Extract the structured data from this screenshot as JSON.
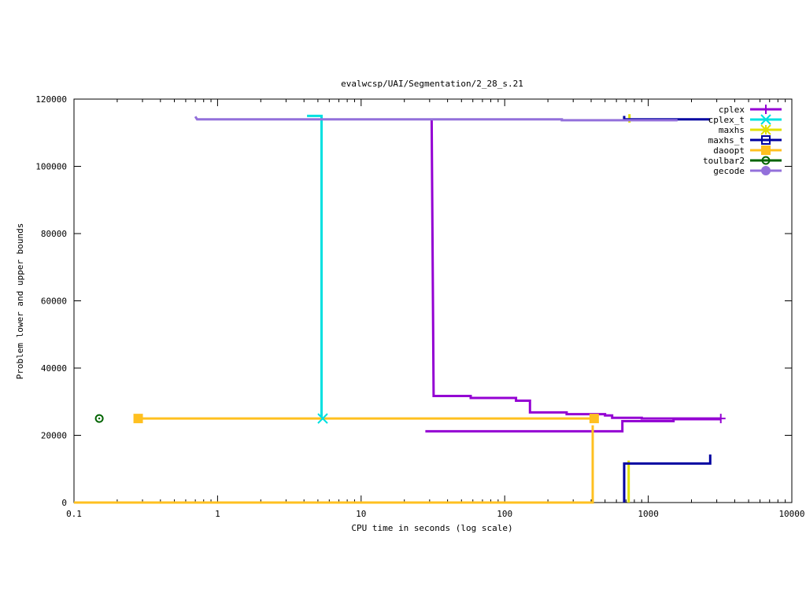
{
  "chart_data": {
    "type": "line",
    "title": "evalwcsp/UAI/Segmentation/2_28_s.21",
    "xlabel": "CPU time in seconds (log scale)",
    "ylabel": "Problem lower and upper bounds",
    "xscale": "log",
    "xlim": [
      0.1,
      10000
    ],
    "ylim": [
      0,
      120000
    ],
    "x_ticks": [
      0.1,
      1,
      10,
      100,
      1000,
      10000
    ],
    "x_tick_labels": [
      "0.1",
      "1",
      "10",
      "100",
      "1000",
      "10000"
    ],
    "y_ticks": [
      0,
      20000,
      40000,
      60000,
      80000,
      100000,
      120000
    ],
    "y_tick_labels": [
      "0",
      "20000",
      "40000",
      "60000",
      "80000",
      "100000",
      "120000"
    ],
    "legend_position": "top-right",
    "series": [
      {
        "name": "cplex",
        "color": "#9400d3",
        "marker": "plus",
        "upper": [
          [
            31,
            114200
          ],
          [
            32,
            31700
          ],
          [
            58,
            31700
          ],
          [
            58,
            31100
          ],
          [
            120,
            31100
          ],
          [
            120,
            30300
          ],
          [
            150,
            30300
          ],
          [
            150,
            26800
          ],
          [
            270,
            26800
          ],
          [
            270,
            26300
          ],
          [
            500,
            26300
          ],
          [
            500,
            25900
          ],
          [
            560,
            25900
          ],
          [
            560,
            25200
          ],
          [
            900,
            25200
          ],
          [
            900,
            25000
          ],
          [
            3200,
            25000
          ]
        ],
        "lower": [
          [
            28,
            21200
          ],
          [
            660,
            21200
          ],
          [
            660,
            24200
          ],
          [
            1500,
            24200
          ],
          [
            1500,
            24800
          ],
          [
            3200,
            24800
          ]
        ],
        "marker_at": [
          3200,
          25000
        ]
      },
      {
        "name": "cplex_t",
        "color": "#00e0e0",
        "marker": "x",
        "upper": [
          [
            4.2,
            115000
          ],
          [
            5.3,
            115000
          ],
          [
            5.3,
            25000
          ]
        ],
        "marker_at": [
          5.4,
          25000
        ]
      },
      {
        "name": "maxhs",
        "color": "#e0e000",
        "marker": "star",
        "upper": [
          [
            740,
            115500
          ],
          [
            740,
            113000
          ]
        ],
        "lower": [
          [
            730,
            0
          ],
          [
            730,
            12500
          ]
        ]
      },
      {
        "name": "maxhs_t",
        "color": "#0000a0",
        "marker": "square-open",
        "upper": [
          [
            680,
            115000
          ],
          [
            680,
            114000
          ],
          [
            2700,
            114000
          ]
        ],
        "lower": [
          [
            680,
            0
          ],
          [
            680,
            11600
          ],
          [
            2700,
            11600
          ],
          [
            2700,
            14300
          ]
        ]
      },
      {
        "name": "daoopt",
        "color": "#ffc020",
        "marker": "square",
        "upper": [
          [
            0.28,
            25000
          ],
          [
            420,
            25000
          ]
        ],
        "lower": [
          [
            0.1,
            0
          ],
          [
            410,
            0
          ],
          [
            410,
            23000
          ]
        ],
        "marker_at": [
          [
            0.28,
            25000
          ],
          [
            420,
            25000
          ]
        ]
      },
      {
        "name": "toulbar2",
        "color": "#006400",
        "marker": "circle-open",
        "marker_at": [
          0.15,
          25000
        ]
      },
      {
        "name": "gecode",
        "color": "#9370db",
        "marker": "circle",
        "upper": [
          [
            0.7,
            114800
          ],
          [
            0.72,
            114000
          ],
          [
            250,
            114000
          ],
          [
            250,
            113700
          ],
          [
            1600,
            113700
          ]
        ]
      }
    ]
  }
}
